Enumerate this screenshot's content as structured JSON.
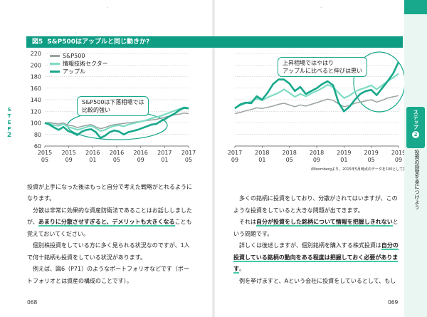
{
  "figure": {
    "number": "図5",
    "title": "S&P500はアップルと同じ動きか?",
    "callout_left": [
      "S&P500は下落相場では",
      "比較的強い"
    ],
    "callout_right": [
      "上昇相場ではやはり",
      "アップルに比べると伸びは悪い"
    ],
    "source": "(Bloombergより。2015年5月時点のデータを100として指数化)"
  },
  "chart_data": {
    "type": "line",
    "ylim": [
      60,
      220
    ],
    "yticks": [
      60,
      80,
      100,
      120,
      140,
      160,
      180,
      200,
      220
    ],
    "left_xticks": [
      [
        "2015",
        "05"
      ],
      [
        "2015",
        "09"
      ],
      [
        "2016",
        "01"
      ],
      [
        "2016",
        "05"
      ],
      [
        "2016",
        "09"
      ],
      [
        "2017",
        "01"
      ],
      [
        "2017",
        "05"
      ]
    ],
    "right_xticks": [
      [
        "2017",
        "09"
      ],
      [
        "2018",
        "01"
      ],
      [
        "2018",
        "05"
      ],
      [
        "2018",
        "09"
      ],
      [
        "2019",
        "01"
      ],
      [
        "2019",
        "05"
      ],
      [
        "2019",
        "09"
      ]
    ],
    "colors": {
      "sp500": "#9aa3a0",
      "tech": "#7fdcc4",
      "apple": "#18a88b"
    },
    "series": [
      {
        "name": "S&P500",
        "values": [
          100,
          101,
          99,
          98,
          100,
          96,
          95,
          92,
          94,
          96,
          97,
          93,
          90,
          92,
          95,
          97,
          98,
          99,
          100,
          101,
          102,
          103,
          104,
          105,
          106,
          108,
          110,
          112,
          114,
          115,
          117,
          116,
          118,
          121,
          123,
          126,
          125,
          127,
          129,
          132,
          134,
          131,
          128,
          131,
          129,
          132,
          135,
          138,
          141,
          139,
          133,
          128,
          130,
          134,
          136,
          138,
          140,
          136,
          139,
          143,
          145,
          147
        ]
      },
      {
        "name": "情報技術セクター",
        "values": [
          100,
          99,
          96,
          95,
          98,
          93,
          91,
          88,
          90,
          93,
          95,
          91,
          86,
          88,
          92,
          95,
          96,
          94,
          97,
          99,
          101,
          103,
          105,
          108,
          110,
          112,
          115,
          118,
          121,
          124,
          127,
          126,
          130,
          134,
          137,
          142,
          139,
          144,
          148,
          152,
          158,
          152,
          145,
          150,
          146,
          151,
          155,
          160,
          166,
          162,
          152,
          143,
          147,
          154,
          158,
          161,
          165,
          158,
          165,
          172,
          178,
          185
        ]
      },
      {
        "name": "アップル",
        "values": [
          100,
          97,
          92,
          88,
          93,
          86,
          83,
          79,
          85,
          88,
          89,
          84,
          74,
          78,
          84,
          87,
          85,
          80,
          84,
          86,
          88,
          91,
          94,
          97,
          98,
          103,
          107,
          112,
          116,
          122,
          126,
          125,
          132,
          135,
          134,
          146,
          140,
          152,
          167,
          175,
          175,
          168,
          155,
          162,
          150,
          155,
          160,
          167,
          172,
          165,
          135,
          120,
          128,
          140,
          150,
          155,
          157,
          148,
          160,
          172,
          185,
          205
        ]
      }
    ]
  },
  "legend": {
    "sp500": "S&P500",
    "tech": "情報技術セクター",
    "apple": "アップル"
  },
  "left_page": {
    "lines": [
      "投資が上手になった後はもっと自分で考えた戦略がとれるように",
      "なります。",
      "　分散は非常に効果的な資産防衛法であることはお話ししました",
      "が、あまりに分散させすぎると、デメリットも大きくなることも",
      "覚えておいてください。",
      "　個別株投資をしている方に多く見られる状況なのですが、1人",
      "で何十銘柄も投資をしている状況があります。",
      "　例えば、図6（P71）のようなポートフォリオなどです（ポー",
      "トフォリオとは資産の構成のことです）。"
    ],
    "highlight_1": "あまりに分散させすぎると、デメリットも大きくなる",
    "page_number": "068",
    "side_label": "STEP2"
  },
  "right_page": {
    "lines": [
      "　多くの銘柄に投資をしており、分散がされてはいますが、この",
      "ような投資をしていると大きな問題が出てきます。",
      "　それは自分が投資をした銘柄について情報を把握しきれないと",
      "いう問題です。",
      "　詳しくは後述しますが、個別銘柄を購入する株式投資は自分の",
      "投資している銘柄の動向をある程度は把握しておく必要がありま",
      "す。",
      "　例を挙げますと、Aという会社に投資をしているとして、もし"
    ],
    "highlight_2": "自分が投資をした銘柄について情報を把握しきれない",
    "highlight_3a": "自分の",
    "highlight_3b": "投資している銘柄の動向をある程度は把握しておく必要がありま",
    "highlight_3c": "す",
    "page_number": "069",
    "tab_step": "ステップ",
    "tab_step_no": "2",
    "tab_text": "投資の感覚を身につけよう"
  }
}
